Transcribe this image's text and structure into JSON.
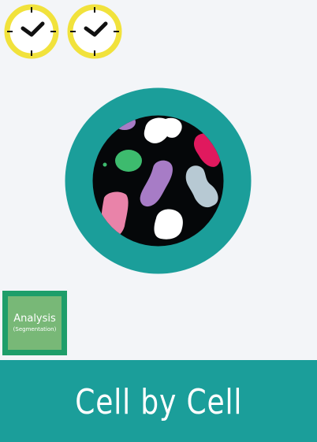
{
  "clocks": [
    {
      "icon": "clock-icon",
      "ring_color": "#f1e23c"
    },
    {
      "icon": "clock-icon",
      "ring_color": "#f1e23c"
    }
  ],
  "cell_view": {
    "icon": "segmented-cells-icon",
    "ring_color": "#1b9e9a",
    "background_color": "#050709",
    "cell_colors": [
      "#ffffff",
      "#a77cc6",
      "#e0195e",
      "#3dbb6e",
      "#b7c9d3",
      "#e983a9"
    ]
  },
  "analysis": {
    "title": "Analysis",
    "subtitle": "(Segmentation)",
    "border_color": "#1e9e6a",
    "fill_color": "#78b877"
  },
  "banner": {
    "title": "Cell by Cell",
    "color": "#1b9e9a"
  }
}
